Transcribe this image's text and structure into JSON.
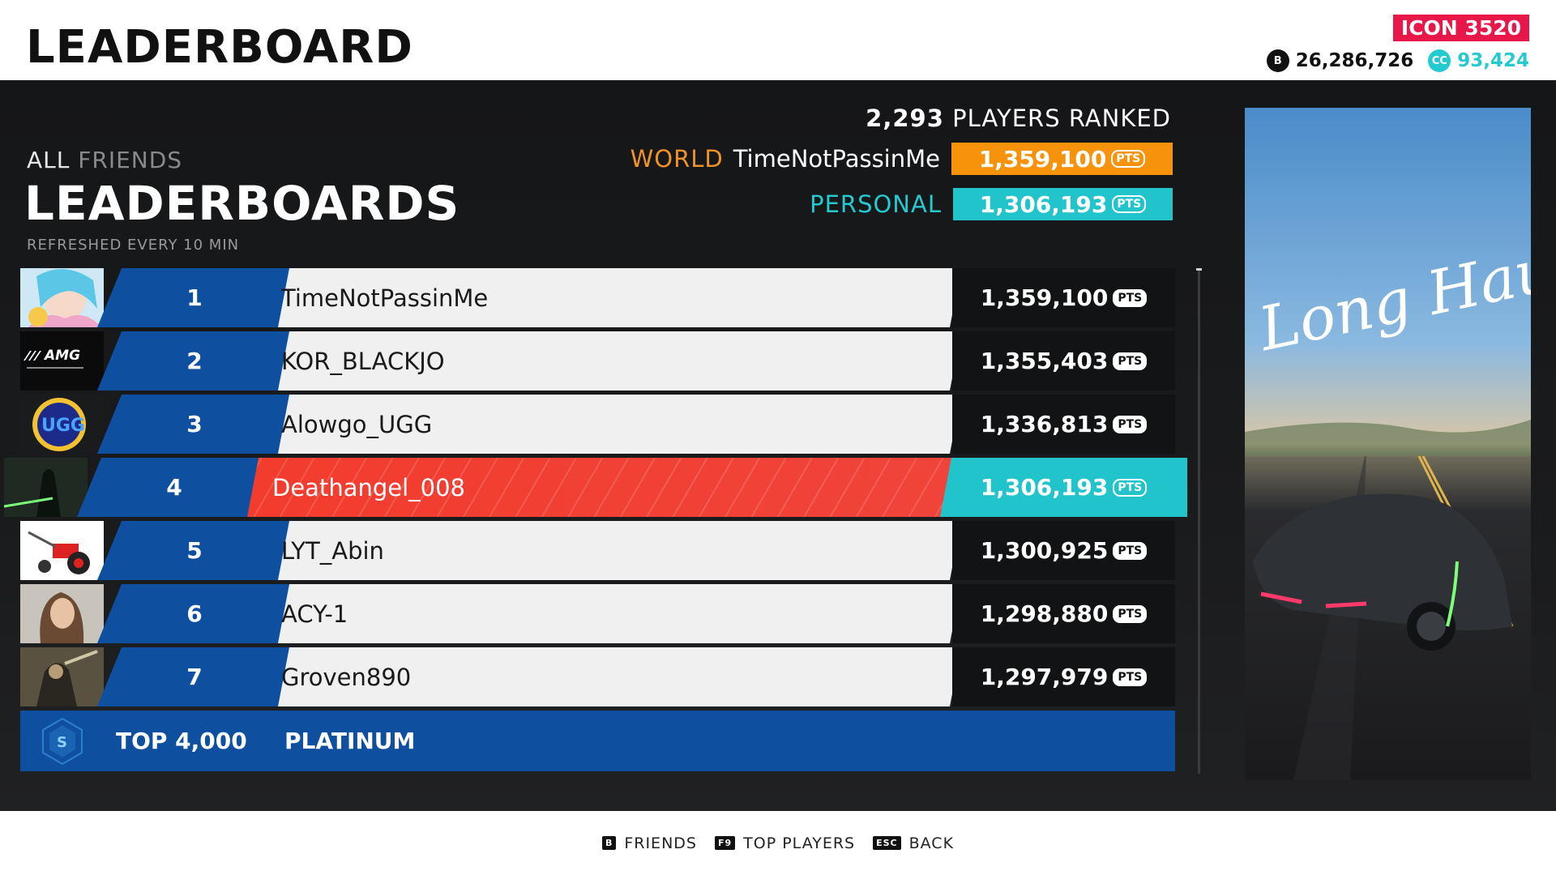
{
  "header": {
    "title": "LEADERBOARD",
    "icon_level": "ICON 3520",
    "bucks": "26,286,726",
    "crew_credits": "93,424"
  },
  "filters": {
    "all": "ALL",
    "friends": "FRIENDS"
  },
  "board": {
    "title": "LEADERBOARDS",
    "refresh_note": "REFRESHED EVERY 10 MIN",
    "players_count": "2,293",
    "players_label": "PLAYERS RANKED",
    "world_label": "WORLD",
    "world_holder": "TimeNotPassinMe",
    "world_score": "1,359,100",
    "personal_label": "PERSONAL",
    "personal_score": "1,306,193",
    "pts_label": "PTS"
  },
  "rows": [
    {
      "rank": "1",
      "name": "TimeNotPassinMe",
      "score": "1,359,100",
      "avatar": "anime-girl-avatar",
      "me": false
    },
    {
      "rank": "2",
      "name": "KOR_BLACKJO",
      "score": "1,355,403",
      "avatar": "amg-logo-avatar",
      "me": false
    },
    {
      "rank": "3",
      "name": "Alowgo_UGG",
      "score": "1,336,813",
      "avatar": "ugg-emblem-avatar",
      "me": false
    },
    {
      "rank": "4",
      "name": "Deathangel_008",
      "score": "1,306,193",
      "avatar": "dark-knight-avatar",
      "me": true
    },
    {
      "rank": "5",
      "name": "LYT_Abin",
      "score": "1,300,925",
      "avatar": "tractor-avatar",
      "me": false
    },
    {
      "rank": "6",
      "name": "ACY-1",
      "score": "1,298,880",
      "avatar": "woman-portrait-avatar",
      "me": false
    },
    {
      "rank": "7",
      "name": "Groven890",
      "score": "1,297,979",
      "avatar": "warrior-avatar",
      "me": false
    }
  ],
  "tier": {
    "top": "TOP 4,000",
    "name": "PLATINUM"
  },
  "promo": {
    "script_text": "Long Haul"
  },
  "footer": [
    {
      "key": "B",
      "label": "FRIENDS"
    },
    {
      "key": "F9",
      "label": "TOP PLAYERS"
    },
    {
      "key": "ESC",
      "label": "BACK"
    }
  ],
  "colors": {
    "rank_blue": "#0f4fa0",
    "world_orange": "#f7920b",
    "personal_cyan": "#22c4cc",
    "highlight_red": "#f23c2e",
    "icon_pink": "#e8174a"
  }
}
